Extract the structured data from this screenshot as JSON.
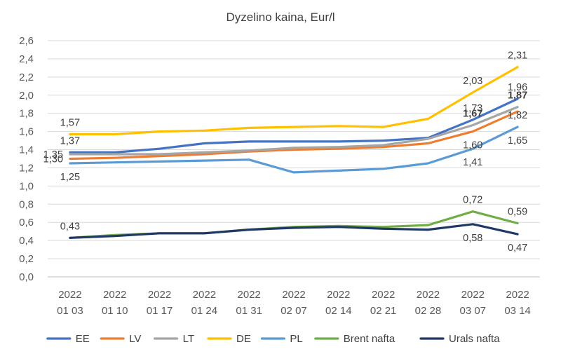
{
  "chart_data": {
    "type": "line",
    "title": "Dyzelino kaina, Eur/l",
    "xlabel": "",
    "ylabel": "",
    "ylim": [
      0,
      2.6
    ],
    "ytick_step": 0.2,
    "grid": "horizontal",
    "legend_position": "bottom",
    "categories": [
      [
        "2022",
        "01 03"
      ],
      [
        "2022",
        "01 10"
      ],
      [
        "2022",
        "01 17"
      ],
      [
        "2022",
        "01 24"
      ],
      [
        "2022",
        "01 31"
      ],
      [
        "2022",
        "02 07"
      ],
      [
        "2022",
        "02 14"
      ],
      [
        "2022",
        "02 21"
      ],
      [
        "2022",
        "02 28"
      ],
      [
        "2022",
        "03 07"
      ],
      [
        "2022",
        "03 14"
      ]
    ],
    "series": [
      {
        "name": "EE",
        "color": "#4472C4",
        "values": [
          1.37,
          1.37,
          1.41,
          1.47,
          1.49,
          1.49,
          1.49,
          1.5,
          1.53,
          1.73,
          1.96
        ]
      },
      {
        "name": "LV",
        "color": "#ED7D31",
        "values": [
          1.3,
          1.31,
          1.33,
          1.35,
          1.38,
          1.4,
          1.41,
          1.43,
          1.47,
          1.6,
          1.82
        ]
      },
      {
        "name": "LT",
        "color": "#A5A5A5",
        "values": [
          1.35,
          1.35,
          1.35,
          1.37,
          1.39,
          1.42,
          1.43,
          1.45,
          1.52,
          1.67,
          1.87
        ]
      },
      {
        "name": "DE",
        "color": "#FFC000",
        "values": [
          1.57,
          1.57,
          1.6,
          1.61,
          1.64,
          1.65,
          1.66,
          1.65,
          1.74,
          2.03,
          2.31
        ]
      },
      {
        "name": "PL",
        "color": "#5B9BD5",
        "values": [
          1.25,
          1.26,
          1.27,
          1.28,
          1.29,
          1.15,
          1.17,
          1.19,
          1.25,
          1.41,
          1.65
        ]
      },
      {
        "name": "Brent nafta",
        "color": "#70AD47",
        "values": [
          0.43,
          0.46,
          0.48,
          0.48,
          0.52,
          0.55,
          0.56,
          0.55,
          0.57,
          0.72,
          0.59
        ]
      },
      {
        "name": "Urals nafta",
        "color": "#203864",
        "values": [
          0.43,
          0.45,
          0.48,
          0.48,
          0.52,
          0.54,
          0.55,
          0.53,
          0.52,
          0.58,
          0.47
        ]
      }
    ],
    "y_tick_labels": [
      "0,0",
      "0,2",
      "0,4",
      "0,6",
      "0,8",
      "1,0",
      "1,2",
      "1,4",
      "1,6",
      "1,8",
      "2,0",
      "2,2",
      "2,4",
      "2,6"
    ],
    "data_labels": [
      {
        "series": "DE",
        "index": 0,
        "text": "1,57",
        "pos": "above",
        "bold": false
      },
      {
        "series": "EE",
        "index": 0,
        "text": "1,37",
        "pos": "above",
        "bold": false
      },
      {
        "series": "LT",
        "index": 0,
        "text": "1,35",
        "pos": "left",
        "bold": false
      },
      {
        "series": "LV",
        "index": 0,
        "text": "1,30",
        "pos": "left",
        "bold": false
      },
      {
        "series": "PL",
        "index": 0,
        "text": "1,25",
        "pos": "below",
        "bold": false
      },
      {
        "series": "Brent nafta",
        "index": 0,
        "text": "0,43",
        "pos": "above",
        "bold": false
      },
      {
        "series": "DE",
        "index": 9,
        "text": "2,03",
        "pos": "above",
        "bold": false
      },
      {
        "series": "EE",
        "index": 9,
        "text": "1,73",
        "pos": "above",
        "bold": false
      },
      {
        "series": "LT",
        "index": 9,
        "text": "1,67",
        "pos": "above",
        "bold": true
      },
      {
        "series": "LV",
        "index": 9,
        "text": "1,60",
        "pos": "below",
        "bold": false
      },
      {
        "series": "PL",
        "index": 9,
        "text": "1,41",
        "pos": "below",
        "bold": false
      },
      {
        "series": "Brent nafta",
        "index": 9,
        "text": "0,72",
        "pos": "above",
        "bold": false
      },
      {
        "series": "Urals nafta",
        "index": 9,
        "text": "0,58",
        "pos": "below",
        "bold": false
      },
      {
        "series": "DE",
        "index": 10,
        "text": "2,31",
        "pos": "above",
        "bold": false
      },
      {
        "series": "EE",
        "index": 10,
        "text": "1,96",
        "pos": "above",
        "bold": false
      },
      {
        "series": "LT",
        "index": 10,
        "text": "1,87",
        "pos": "above",
        "bold": true
      },
      {
        "series": "LV",
        "index": 10,
        "text": "1,82",
        "pos": "right-under",
        "bold": false
      },
      {
        "series": "PL",
        "index": 10,
        "text": "1,65",
        "pos": "below",
        "bold": false
      },
      {
        "series": "Brent nafta",
        "index": 10,
        "text": "0,59",
        "pos": "above",
        "bold": false
      },
      {
        "series": "Urals nafta",
        "index": 10,
        "text": "0,47",
        "pos": "below",
        "bold": false
      }
    ]
  }
}
